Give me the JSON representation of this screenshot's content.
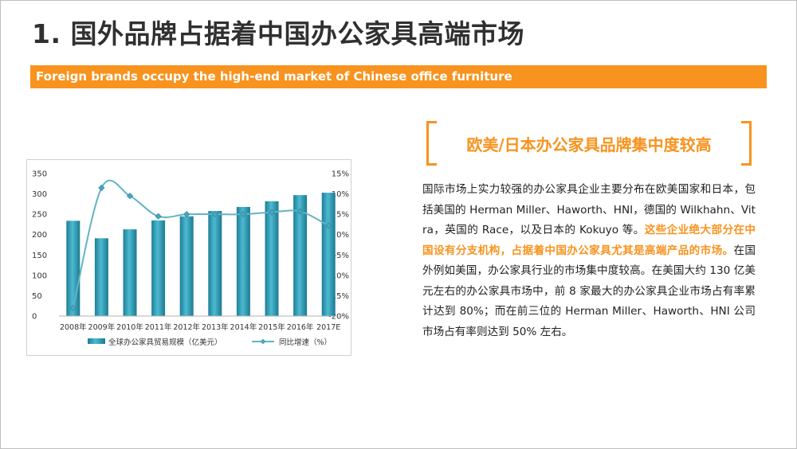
{
  "slide": {
    "title": "1. 国外品牌占据着中国办公家具高端市场",
    "banner": "Foreign brands occupy the high-end market of Chinese office furniture",
    "subtitle": "欧美/日本办公家具品牌集中度较高",
    "paragraph": {
      "part1": "国际市场上实力较强的办公家具企业主要分布在欧美国家和日本，包括美国的 Herman Miller、Haworth、HNI，德国的 Wilkhahn、Vitra，英国的 Race，以及日本的 Kokuyo 等。",
      "highlight": "这些企业绝大部分在中国设有分支机构，占据着中国办公家具尤其是高端产品的市场。",
      "part2": "在国外例如美国，办公家具行业的市场集中度较高。在美国大约 130 亿美元左右的办公家具市场中，前 8 家最大的办公家具企业市场占有率累计达到 80%；而在前三位的 Herman Miller、Haworth、HNI 公司市场占有率则达到 50% 左右。"
    }
  },
  "chart_data": {
    "type": "bar",
    "categories": [
      "2008年",
      "2009年",
      "2010年",
      "2011年",
      "2012年",
      "2013年",
      "2014年",
      "2015年",
      "2016年",
      "2017E"
    ],
    "series": [
      {
        "name": "全球办公家具贸易规模（亿美元）",
        "type": "bar",
        "axis": "left",
        "values": [
          234,
          191,
          213,
          235,
          245,
          258,
          268,
          282,
          297,
          303
        ]
      },
      {
        "name": "同比增速（%）",
        "type": "line",
        "axis": "right",
        "values": [
          -18.0,
          11.5,
          9.5,
          4.5,
          5.0,
          5.0,
          5.0,
          5.5,
          5.7,
          2.2
        ]
      }
    ],
    "ylim_left": [
      0,
      350
    ],
    "yticks_left": [
      "350",
      "300",
      "250",
      "200",
      "150",
      "100",
      "50",
      "0"
    ],
    "ylim_right": [
      -20,
      15
    ],
    "yticks_right": [
      "15%",
      "10%",
      "5%",
      "0%",
      "-5%",
      "-10%",
      "-15%",
      "-20%"
    ],
    "grid": false,
    "legend_position": "bottom",
    "colors": {
      "bar": "#2a9bb3",
      "line": "#62b3c6"
    }
  }
}
